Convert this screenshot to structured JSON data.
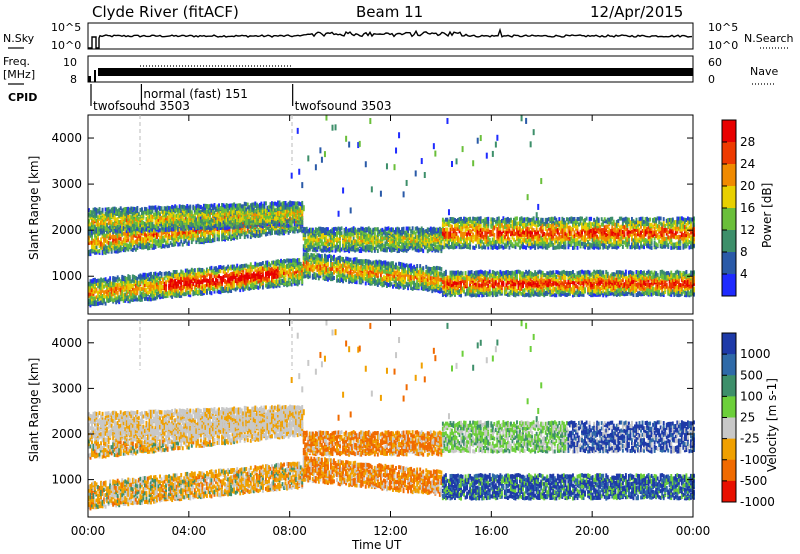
{
  "header": {
    "station": "Clyde River (fitACF)",
    "beam": "Beam 11",
    "date": "12/Apr/2015"
  },
  "strip": {
    "nsky_label": "N.Sky",
    "nsearch_label": "N.Search",
    "noise_ticks": [
      "10^5",
      "10^0"
    ],
    "freq_label_1": "Freq.",
    "freq_label_2": "[MHz]",
    "freq_ticks": [
      "10",
      "8"
    ],
    "nave_label": "Nave",
    "nave_ticks": [
      "60",
      "0"
    ],
    "cpid_label": "CPID",
    "cpid_segments": [
      {
        "name": "twofsound 3503",
        "start_hour": 0.0,
        "end_hour": 2.0
      },
      {
        "name": "normal (fast) 151",
        "start_hour": 2.0,
        "end_hour": 8.0
      },
      {
        "name": "twofsound 3503",
        "start_hour": 8.0,
        "end_hour": 24.0
      }
    ]
  },
  "chart_data": [
    {
      "type": "heatmap",
      "panel": "power",
      "ylabel": "Slant Range [km]",
      "ylim": [
        180,
        4500
      ],
      "yticks": [
        "1000",
        "2000",
        "3000",
        "4000"
      ],
      "colorbar_label": "Power [dB]",
      "colorbar_ticks": [
        "4",
        "8",
        "12",
        "16",
        "20",
        "24",
        "28"
      ],
      "colors": [
        "#1f2bff",
        "#2a5aa8",
        "#3d8f6a",
        "#6abf3a",
        "#e8d000",
        "#f08a00",
        "#ee3a00",
        "#e80000"
      ]
    },
    {
      "type": "heatmap",
      "panel": "velocity",
      "ylabel": "Slant Range [km]",
      "ylim": [
        180,
        4500
      ],
      "yticks": [
        "1000",
        "2000",
        "3000",
        "4000"
      ],
      "colorbar_label": "Velocity [m s-1]",
      "colorbar_ticks": [
        "1000",
        "500",
        "100",
        "25",
        "-25",
        "-100",
        "-500",
        "-1000"
      ],
      "colors": [
        "#1e3aa8",
        "#2f6aa8",
        "#3d8f6a",
        "#6ccf3a",
        "#c8c8c8",
        "#f0a000",
        "#f06a00",
        "#e81000"
      ]
    }
  ],
  "xaxis": {
    "label": "Time UT",
    "ticks": [
      "00:00",
      "04:00",
      "08:00",
      "12:00",
      "16:00",
      "20:00",
      "00:00"
    ]
  }
}
